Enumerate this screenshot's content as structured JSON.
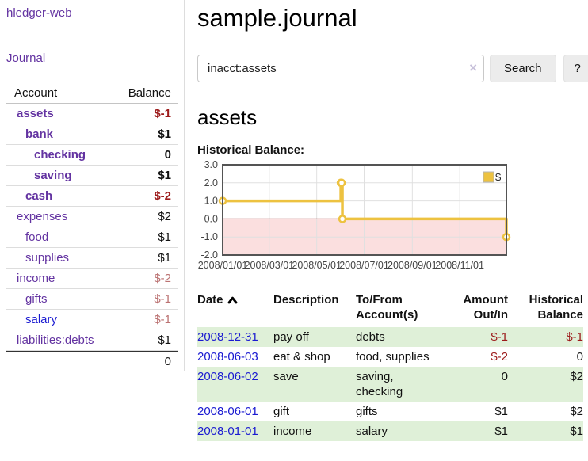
{
  "app": {
    "title": "hledger-web"
  },
  "sidebar": {
    "journal_link": "Journal",
    "accounts_table": {
      "headers": [
        "Account",
        "Balance"
      ],
      "rows": [
        {
          "name": "assets",
          "depth": 1,
          "bold": true,
          "balance": "$-1",
          "balance_class": "neg"
        },
        {
          "name": "bank",
          "depth": 2,
          "bold": true,
          "balance": "$1",
          "balance_class": "pos"
        },
        {
          "name": "checking",
          "depth": 3,
          "bold": true,
          "balance": "0",
          "balance_class": "pos"
        },
        {
          "name": "saving",
          "depth": 3,
          "bold": true,
          "balance": "$1",
          "balance_class": "pos"
        },
        {
          "name": "cash",
          "depth": 2,
          "bold": true,
          "balance": "$-2",
          "balance_class": "neg"
        },
        {
          "name": "expenses",
          "depth": 1,
          "bold": false,
          "balance": "$2",
          "balance_class": "pos"
        },
        {
          "name": "food",
          "depth": 2,
          "bold": false,
          "balance": "$1",
          "balance_class": "pos"
        },
        {
          "name": "supplies",
          "depth": 2,
          "bold": false,
          "balance": "$1",
          "balance_class": "pos"
        },
        {
          "name": "income",
          "depth": 1,
          "bold": false,
          "balance": "$-2",
          "balance_class": "negsoft"
        },
        {
          "name": "gifts",
          "depth": 2,
          "bold": false,
          "balance": "$-1",
          "balance_class": "negsoft"
        },
        {
          "name": "salary",
          "depth": 2,
          "bold": false,
          "balance": "$-1",
          "balance_class": "negsoft",
          "link_color": "blue"
        },
        {
          "name": "liabilities:debts",
          "depth": 1,
          "bold": false,
          "balance": "$1",
          "balance_class": "pos"
        }
      ],
      "total": "0"
    }
  },
  "main": {
    "title": "sample.journal",
    "search": {
      "value": "inacct:assets",
      "clear_icon": "×",
      "button_label": "Search",
      "help_label": "?"
    },
    "account_heading": "assets",
    "chart_label": "Historical Balance:"
  },
  "chart_data": {
    "type": "line",
    "step": true,
    "title": "Historical Balance",
    "series": [
      {
        "name": "$",
        "color": "#EDC240",
        "points": [
          [
            "2008-01-01",
            1
          ],
          [
            "2008-06-01",
            2
          ],
          [
            "2008-06-02",
            2
          ],
          [
            "2008-06-03",
            0
          ],
          [
            "2008-12-31",
            -1
          ]
        ]
      }
    ],
    "ylim": [
      -2,
      3
    ],
    "yticks": [
      3.0,
      2.0,
      1.0,
      0.0,
      -1.0,
      -2.0
    ],
    "xlim": [
      "2008-01-01",
      "2008-12-31"
    ],
    "xticks": [
      "2008/01/01",
      "2008/03/01",
      "2008/05/01",
      "2008/07/01",
      "2008/09/01",
      "2008/11/01"
    ],
    "grid": true,
    "negative_region_fill": "#fbdfdf",
    "zero_line_color": "#8b0000",
    "border_color": "#545454",
    "gridline_color": "#e0e0e0",
    "tick_label_color": "#444444",
    "legend": {
      "label": "$",
      "position": "top-right"
    }
  },
  "register_table": {
    "headers": [
      {
        "label": "Date",
        "sorted": "ascending"
      },
      {
        "label": "Description"
      },
      {
        "label": "To/From Account(s)"
      },
      {
        "label": "Amount Out/In",
        "align": "right"
      },
      {
        "label": "Historical Balance",
        "align": "right"
      }
    ],
    "rows": [
      {
        "date": "2008-12-31",
        "description": "pay off",
        "accounts": "debts",
        "amount": "$-1",
        "amount_neg": true,
        "balance": "$-1",
        "balance_neg": true
      },
      {
        "date": "2008-06-03",
        "description": "eat & shop",
        "accounts": "food, supplies",
        "amount": "$-2",
        "amount_neg": true,
        "balance": "0",
        "balance_neg": false
      },
      {
        "date": "2008-06-02",
        "description": "save",
        "accounts": "saving, checking",
        "amount": "0",
        "amount_neg": false,
        "balance": "$2",
        "balance_neg": false
      },
      {
        "date": "2008-06-01",
        "description": "gift",
        "accounts": "gifts",
        "amount": "$1",
        "amount_neg": false,
        "balance": "$2",
        "balance_neg": false
      },
      {
        "date": "2008-01-01",
        "description": "income",
        "accounts": "salary",
        "amount": "$1",
        "amount_neg": false,
        "balance": "$1",
        "balance_neg": false
      }
    ]
  },
  "colors": {
    "purple_link": "#6333a1",
    "blue_link": "#1a1ad1",
    "negative_strong": "#9c1a1a",
    "negative_soft": "#bb7272",
    "stripe_green": "#dff0d8",
    "series_gold": "#EDC240"
  }
}
